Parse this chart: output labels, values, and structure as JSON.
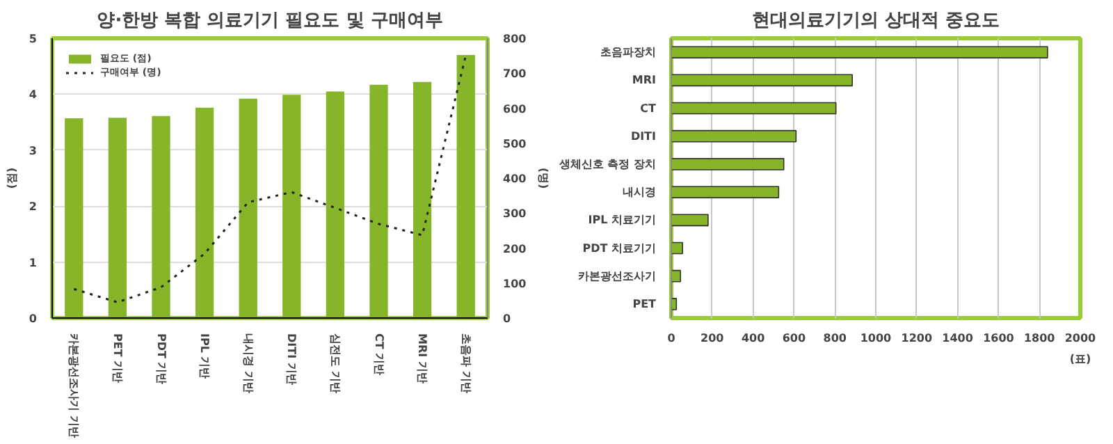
{
  "chart_data": [
    {
      "type": "bar",
      "title": "양·한방 복합 의료기기 필요도 및 구매여부",
      "categories": [
        "카본광선조사기 기반",
        "PET 기반",
        "PDT 기반",
        "IPL 기반",
        "내시경 기반",
        "DITI 기반",
        "심전도 기반",
        "CT 기반",
        "MRI 기반",
        "초음파 기반"
      ],
      "series": [
        {
          "name": "필요도 (점)",
          "color": "#86b52a",
          "values": [
            3.57,
            3.58,
            3.61,
            3.76,
            3.92,
            3.99,
            4.05,
            4.17,
            4.22,
            4.7
          ]
        },
        {
          "name": "구매여부 (명)",
          "type": "line",
          "axis": "y2",
          "color": "#222222",
          "line_style": "dotted",
          "values": [
            83,
            45,
            88,
            184,
            331,
            360,
            315,
            269,
            237,
            752
          ]
        }
      ],
      "ylabel": "(점)",
      "y2label": "(명)",
      "ylim": [
        0,
        5
      ],
      "yticks": [
        0,
        1,
        2,
        3,
        4,
        5
      ],
      "y2lim": [
        0,
        800
      ],
      "y2ticks": [
        0,
        100,
        200,
        300,
        400,
        500,
        600,
        700,
        800
      ],
      "grid": "y",
      "legend": "top left"
    },
    {
      "type": "bar",
      "orientation": "horizontal",
      "title": "현대의료기기의 상대적 중요도",
      "categories": [
        "초음파장치",
        "MRI",
        "CT",
        "DITI",
        "생체신호 측정 장치",
        "내시경",
        "IPL 치료기기",
        "PDT 치료기기",
        "카본광선조사기",
        "PET"
      ],
      "values": [
        1840,
        885,
        805,
        610,
        550,
        525,
        180,
        55,
        45,
        25
      ],
      "color": "#86b52a",
      "xlabel": "(표)",
      "xlim": [
        0,
        2000
      ],
      "xticks": [
        0,
        200,
        400,
        600,
        800,
        1000,
        1200,
        1400,
        1600,
        1800,
        2000
      ],
      "grid": "x"
    }
  ]
}
